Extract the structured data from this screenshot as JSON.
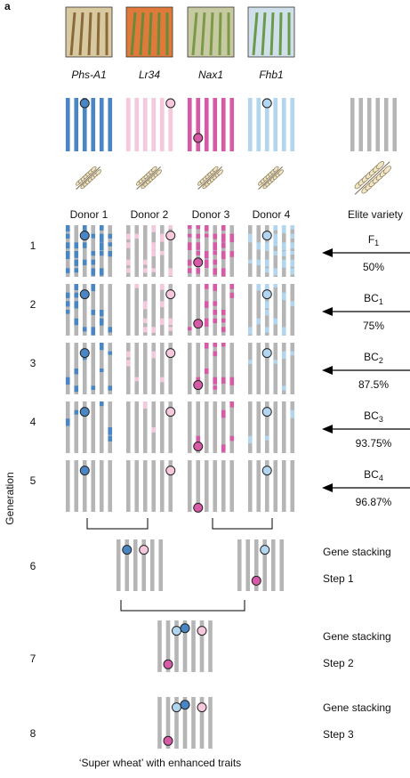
{
  "panel_label": "a",
  "genes": [
    "Phs-A1",
    "Lr34",
    "Nax1",
    "Fhb1"
  ],
  "donors": [
    "Donor 1",
    "Donor 2",
    "Donor 3",
    "Donor 4"
  ],
  "elite": "Elite variety",
  "generation_label": "Generation",
  "generations": [
    "1",
    "2",
    "3",
    "4",
    "5",
    "6",
    "7",
    "8"
  ],
  "backcrosses": [
    {
      "name": "F",
      "sub": "1",
      "percent": "50%"
    },
    {
      "name": "BC",
      "sub": "1",
      "percent": "75%"
    },
    {
      "name": "BC",
      "sub": "2",
      "percent": "87.5%"
    },
    {
      "name": "BC",
      "sub": "3",
      "percent": "93.75%"
    },
    {
      "name": "BC",
      "sub": "4",
      "percent": "96.87%"
    }
  ],
  "stacking": [
    {
      "title": "Gene stacking",
      "step": "Step 1"
    },
    {
      "title": "Gene stacking",
      "step": "Step 2"
    },
    {
      "title": "Gene stacking",
      "step": "Step 3"
    }
  ],
  "caption": "‘Super wheat’ with enhanced traits"
}
